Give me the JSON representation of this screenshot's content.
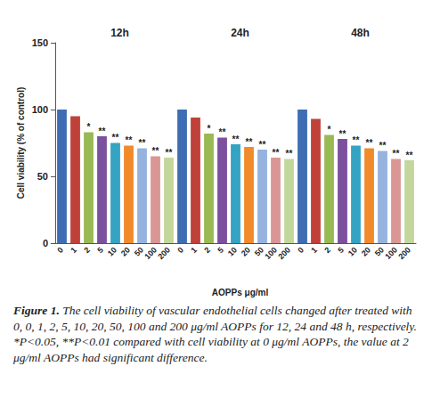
{
  "chart_data": {
    "type": "bar",
    "ylabel": "Cell viability (% of control)",
    "xlabel": "AOPPs μg/ml",
    "ylim": [
      0,
      150
    ],
    "yticks": [
      0,
      50,
      100,
      150
    ],
    "grid": false,
    "data_labels": false,
    "colors": [
      "#3f6db3",
      "#c0403a",
      "#98b954",
      "#7b509e",
      "#35a3c2",
      "#f18a2b",
      "#95b3de",
      "#d99694",
      "#c3d69b"
    ],
    "panels": [
      {
        "title": "12h",
        "categories": [
          "0",
          "1",
          "2",
          "5",
          "10",
          "20",
          "50",
          "100",
          "200"
        ],
        "values": [
          100,
          95,
          83,
          80,
          75,
          73,
          71,
          65,
          64
        ],
        "annotations": [
          null,
          null,
          "*",
          "**",
          "**",
          "**",
          "**",
          "**",
          "**"
        ]
      },
      {
        "title": "24h",
        "categories": [
          "0",
          "1",
          "2",
          "5",
          "10",
          "20",
          "50",
          "100",
          "200"
        ],
        "values": [
          100,
          94,
          82,
          79,
          74,
          72,
          70,
          64,
          63
        ],
        "annotations": [
          null,
          null,
          "*",
          "**",
          "**",
          "**",
          "**",
          "**",
          "**"
        ]
      },
      {
        "title": "48h",
        "categories": [
          "0",
          "1",
          "2",
          "5",
          "10",
          "20",
          "50",
          "100",
          "200"
        ],
        "values": [
          100,
          93,
          81,
          78,
          73,
          71,
          69,
          63,
          62
        ],
        "annotations": [
          null,
          null,
          "*",
          "**",
          "**",
          "**",
          "**",
          "**",
          "**"
        ]
      }
    ],
    "caption_label": "Figure 1.",
    "caption": "The cell viability of vascular endothelial cells changed after treated with 0, 0, 1, 2, 5, 10, 20, 50, 100 and 200 μg/ml AOPPs for 12, 24 and 48 h, respectively. *P<0.05, **P<0.01 compared with cell viability at 0 μg/ml AOPPs, the value at 2 μg/ml AOPPs had significant difference."
  }
}
